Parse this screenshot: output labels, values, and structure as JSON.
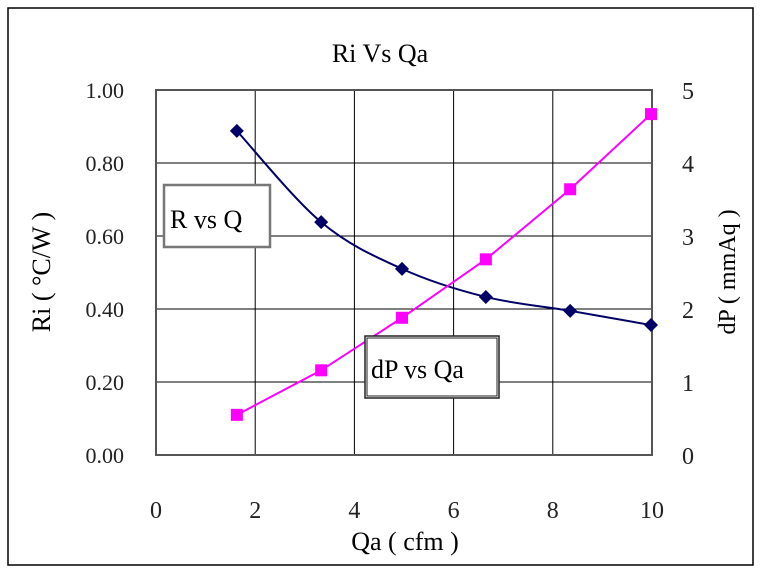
{
  "chart_data": {
    "type": "line",
    "title": "Ri Vs Qa",
    "xlabel": "Qa ( cfm )",
    "ylabel_left": "Ri ( °C/W )",
    "ylabel_right": "dP ( mmAq )",
    "xlim": [
      0,
      10
    ],
    "ylim_left": [
      0,
      1
    ],
    "ylim_right": [
      0,
      5
    ],
    "x_ticks": [
      "0",
      "2",
      "4",
      "6",
      "8",
      "10"
    ],
    "y_left_ticks": [
      "0.00",
      "0.20",
      "0.40",
      "0.60",
      "0.80",
      "1.00"
    ],
    "y_right_ticks": [
      "0",
      "1",
      "2",
      "3",
      "4",
      "5"
    ],
    "grid": true,
    "series": [
      {
        "name": "R vs Q",
        "axis": "left",
        "color": "#000066",
        "marker": "diamond",
        "x": [
          1.63,
          3.33,
          4.96,
          6.65,
          8.35,
          9.98
        ],
        "y": [
          0.888,
          0.638,
          0.51,
          0.433,
          0.395,
          0.356
        ]
      },
      {
        "name": "dP vs Qa",
        "axis": "right",
        "color": "#ff00ff",
        "marker": "square",
        "x": [
          1.63,
          3.33,
          4.96,
          6.65,
          8.35,
          9.98
        ],
        "y": [
          0.55,
          1.16,
          1.88,
          2.68,
          3.64,
          4.67
        ]
      }
    ]
  }
}
